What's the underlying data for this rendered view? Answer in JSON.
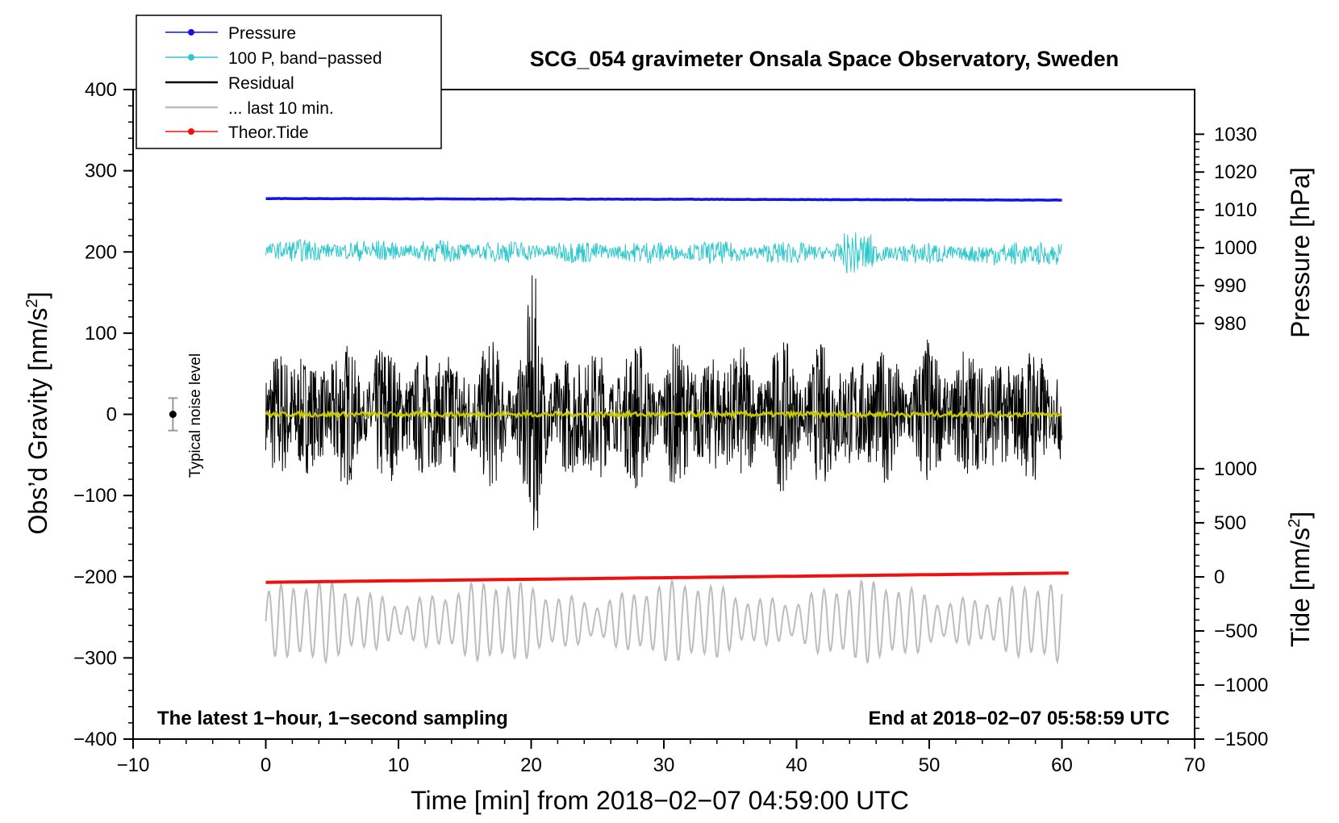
{
  "chart_data": {
    "type": "line",
    "title": "SCG_054 gravimeter Onsala Space Observatory, Sweden",
    "xlabel": "Time [min] from 2018−02−07 04:59:00 UTC",
    "ylabel_left_main": "Obs’d Gravity [nm/s",
    "ylabel_left_sup": "2",
    "ylabel_left_close": "]",
    "ylabel_right_pressure": "Pressure [hPa]",
    "ylabel_right_tide_main": "Tide [nm/s",
    "ylabel_right_tide_sup": "2",
    "ylabel_right_tide_close": "]",
    "xlim": [
      -10,
      70
    ],
    "ylim": [
      -400,
      400
    ],
    "x_ticks": [
      {
        "value": -10,
        "label": "−10"
      },
      {
        "value": 0,
        "label": "0"
      },
      {
        "value": 10,
        "label": "10"
      },
      {
        "value": 20,
        "label": "20"
      },
      {
        "value": 30,
        "label": "30"
      },
      {
        "value": 40,
        "label": "40"
      },
      {
        "value": 50,
        "label": "50"
      },
      {
        "value": 60,
        "label": "60"
      },
      {
        "value": 70,
        "label": "70"
      }
    ],
    "y_ticks": [
      {
        "value": 400,
        "label": "400"
      },
      {
        "value": 300,
        "label": "300"
      },
      {
        "value": 200,
        "label": "200"
      },
      {
        "value": 100,
        "label": "100"
      },
      {
        "value": 0,
        "label": "0"
      },
      {
        "value": -100,
        "label": "−100"
      },
      {
        "value": -200,
        "label": "−200"
      },
      {
        "value": -300,
        "label": "−300"
      },
      {
        "value": -400,
        "label": "−400"
      }
    ],
    "pressure_axis": {
      "range_hpa": [
        980,
        1030
      ],
      "left_equivalent": [
        112,
        345
      ],
      "ticks": [
        {
          "value": 1030,
          "label": "1030"
        },
        {
          "value": 1020,
          "label": "1020"
        },
        {
          "value": 1010,
          "label": "1010"
        },
        {
          "value": 1000,
          "label": "1000"
        },
        {
          "value": 990,
          "label": "990"
        },
        {
          "value": 980,
          "label": "980"
        }
      ]
    },
    "tide_axis": {
      "range_nms2": [
        -1500,
        1000
      ],
      "left_equivalent": [
        -400,
        -67
      ],
      "ticks": [
        {
          "value": 1000,
          "label": "1000"
        },
        {
          "value": 500,
          "label": "500"
        },
        {
          "value": 0,
          "label": "0"
        },
        {
          "value": -500,
          "label": "−500"
        },
        {
          "value": -1000,
          "label": "−1000"
        },
        {
          "value": -1500,
          "label": "−1500"
        }
      ]
    },
    "series": [
      {
        "name": "Pressure",
        "color": "#1414e6",
        "description_units": "hPa",
        "values_hpa_start_end": [
          1013,
          1012.6
        ]
      },
      {
        "name": "100 P, band−passed",
        "color": "#2ec8cc",
        "center_left_units": 202,
        "amplitude_left_units": 14
      },
      {
        "name": "Residual",
        "color": "#000000",
        "center_left_units": 0,
        "amplitude_left_units": 80,
        "peak_minute": 20.2,
        "peak_left_units": 170
      },
      {
        "name": "... last 10 min.",
        "color": "#bdbdbd",
        "center_left_units": -255,
        "amplitude_left_units": 45
      },
      {
        "name": "Theor.Tide",
        "color": "#ee1111",
        "tide_nms2_start_end": [
          -50,
          35
        ]
      }
    ],
    "smoothed_color": "#c8c800",
    "x_range_minutes": [
      0,
      60
    ],
    "legend_position": "top-left",
    "annotations": {
      "bottom_left": "The latest 1−hour, 1−second sampling",
      "bottom_right": "End at 2018−02−07 05:58:59 UTC",
      "noise_label": "Typical noise level",
      "noise_x_minutes": -7,
      "noise_bar_left_units": [
        -20,
        20
      ]
    }
  }
}
